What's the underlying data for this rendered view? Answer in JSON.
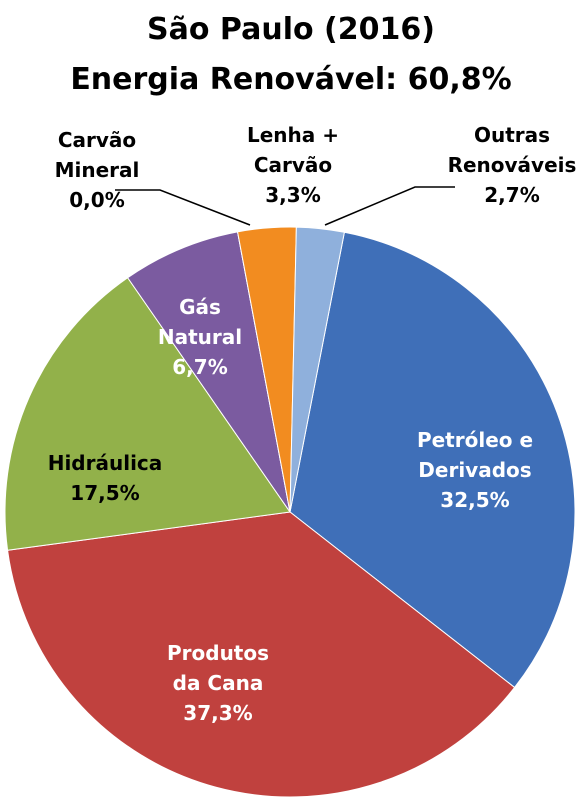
{
  "chart_data": {
    "type": "pie",
    "title": "São Paulo (2016)",
    "subtitle": "Energia Renovável: 60,8%",
    "categories": [
      "Petróleo e\nDerivados",
      "Produtos\nda Cana",
      "Hidráulica",
      "Gás\nNatural",
      "Carvão\nMineral",
      "Lenha +\nCarvão",
      "Outras\nRenováveis"
    ],
    "values": [
      32.5,
      37.3,
      17.5,
      6.7,
      0.0,
      3.3,
      2.7
    ],
    "value_labels": [
      "32,5%",
      "37,3%",
      "17,5%",
      "6,7%",
      "0,0%",
      "3,3%",
      "2,7%"
    ],
    "colors": [
      "#3f6fb8",
      "#c0413e",
      "#92b14a",
      "#7b5ba0",
      "#31a5c4",
      "#f28c20",
      "#8fb0dc"
    ]
  }
}
